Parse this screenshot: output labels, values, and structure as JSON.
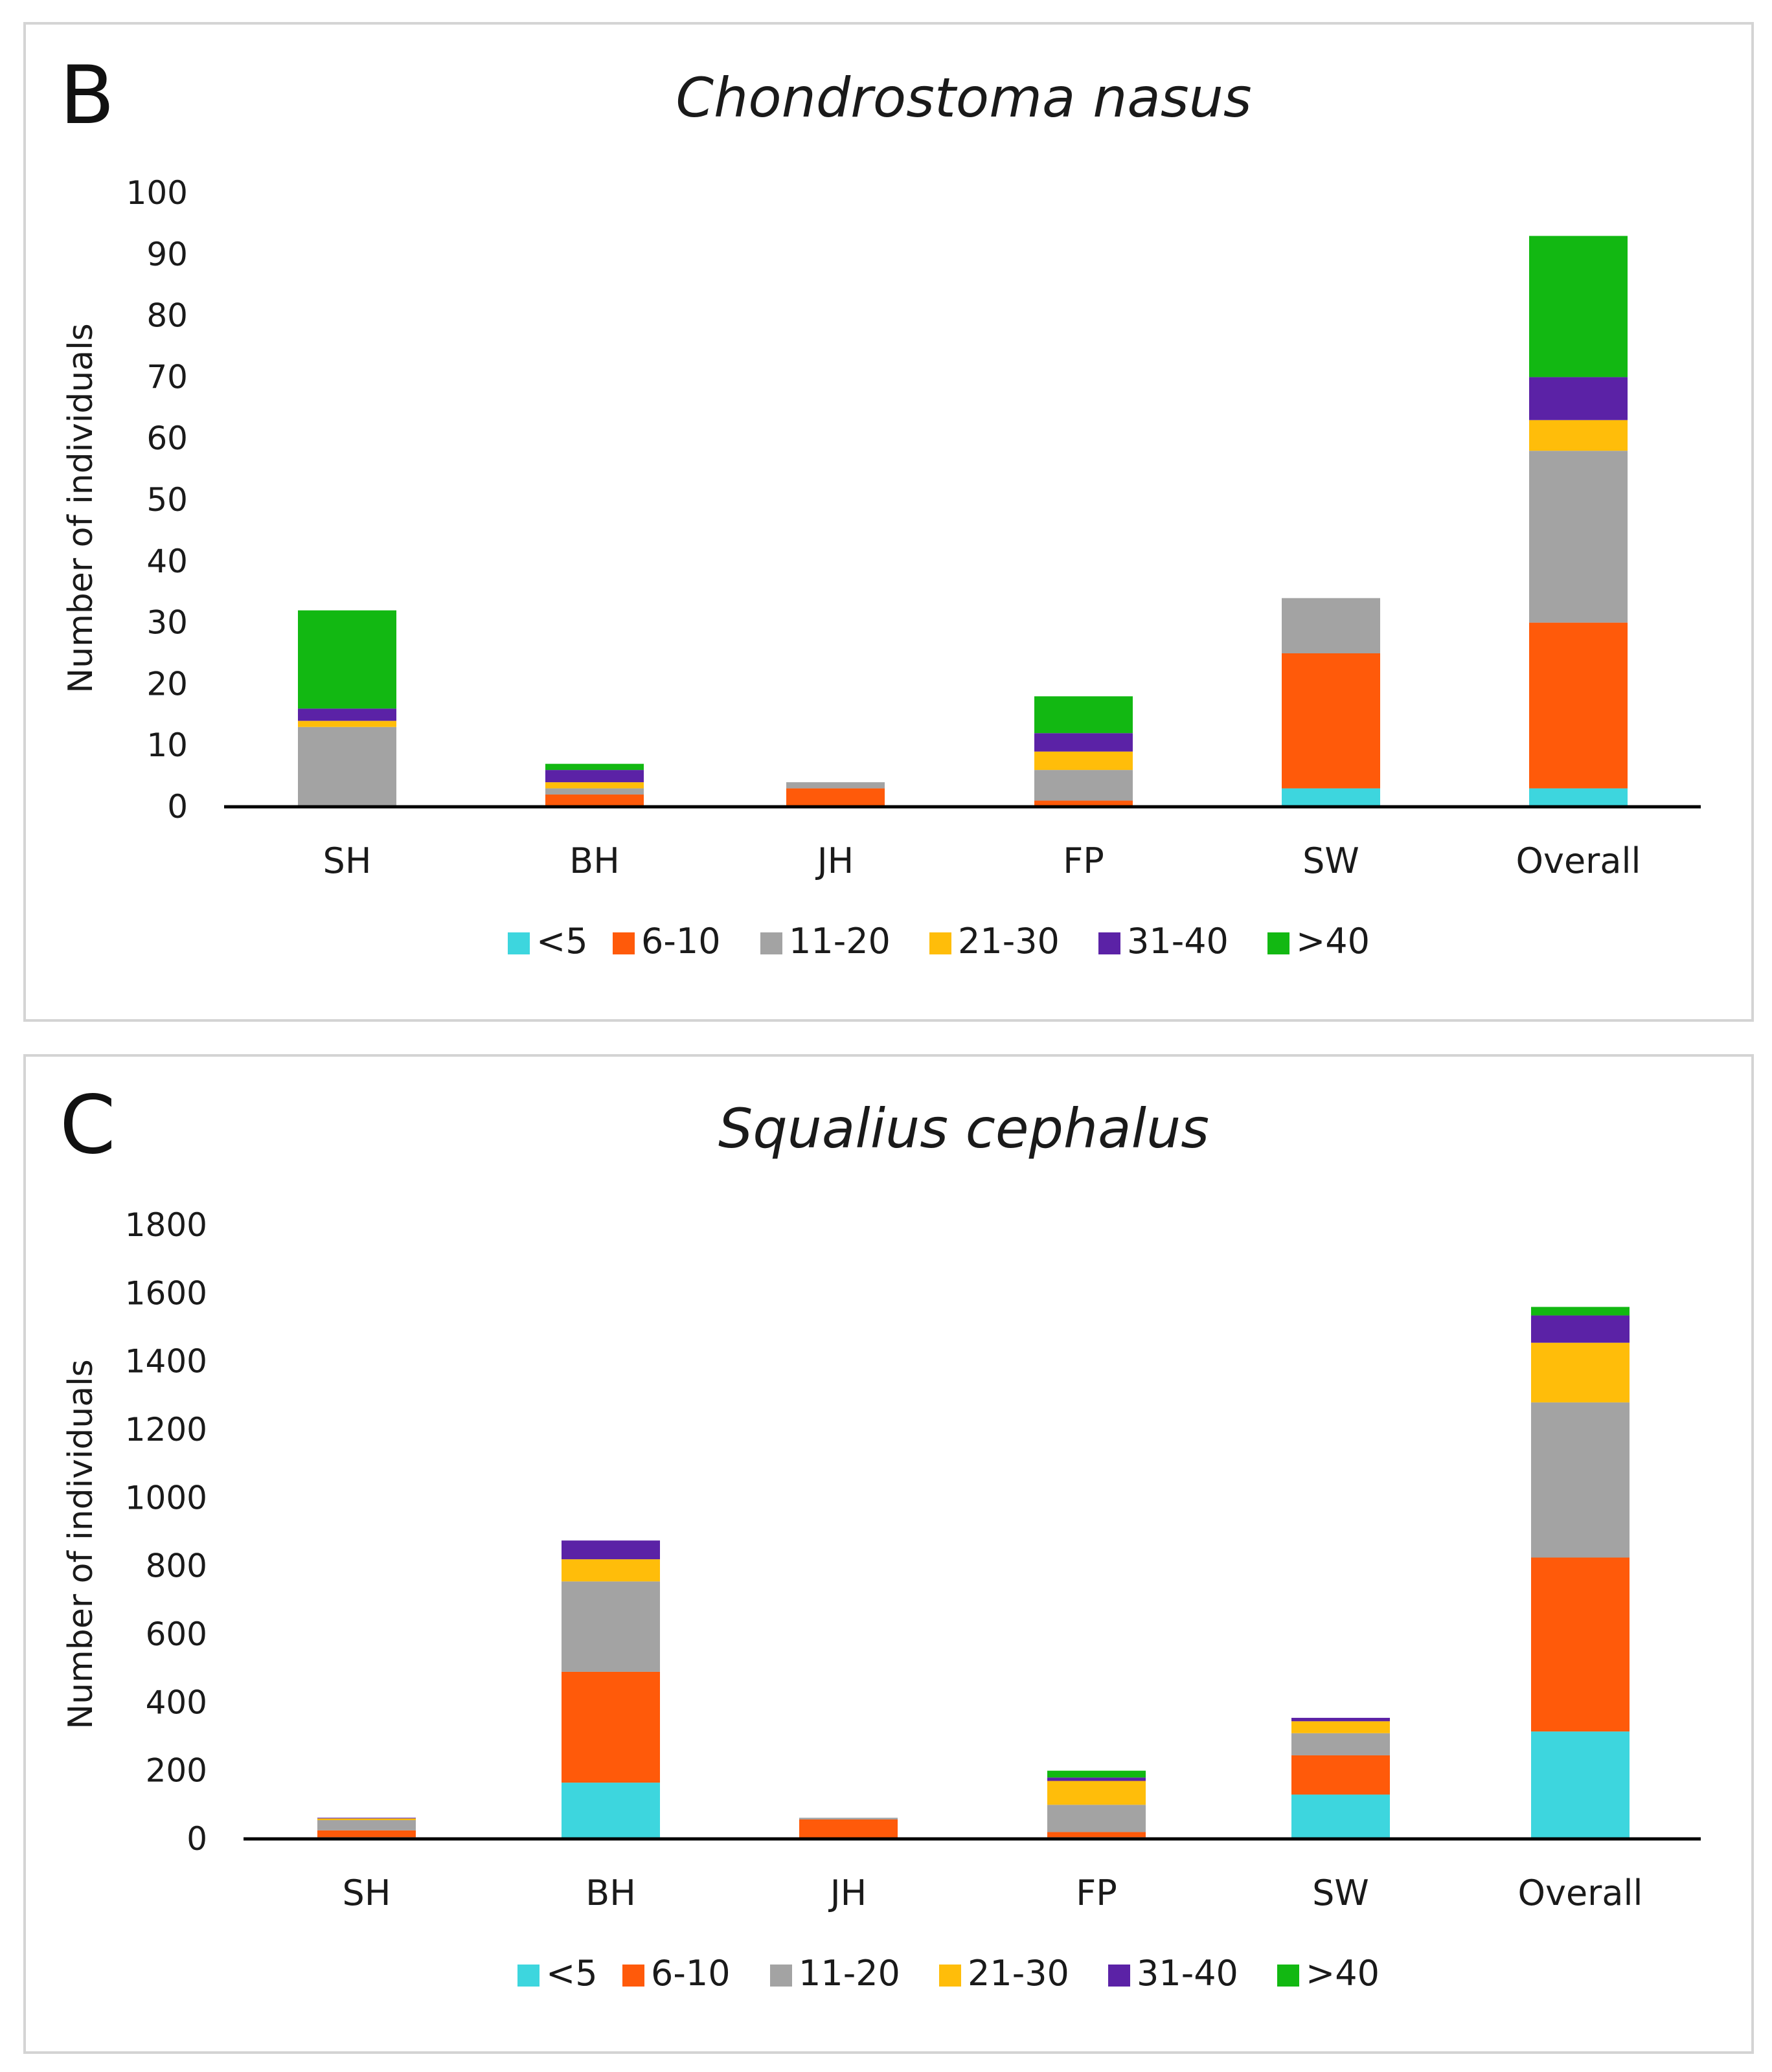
{
  "figure": {
    "series_names": [
      "<5",
      "6-10",
      "11-20",
      "21-30",
      "31-40",
      ">40"
    ],
    "series_colors": [
      "#3dd6de",
      "#ff5a0a",
      "#a3a3a3",
      "#ffbd0a",
      "#5b22a6",
      "#12b812"
    ]
  },
  "chart_data": [
    {
      "panel_letter": "B",
      "type": "bar",
      "stacked": true,
      "title": "Chondrostoma nasus",
      "xlabel": "",
      "ylabel": "Number of individuals",
      "ylim": [
        0,
        100
      ],
      "yticks": [
        0,
        10,
        20,
        30,
        40,
        50,
        60,
        70,
        80,
        90,
        100
      ],
      "categories": [
        "SH",
        "BH",
        "JH",
        "FP",
        "SW",
        "Overall"
      ],
      "legend_position": "bottom",
      "series": [
        {
          "name": "<5",
          "values": [
            0,
            0,
            0,
            0,
            3,
            3
          ]
        },
        {
          "name": "6-10",
          "values": [
            0,
            2,
            3,
            1,
            22,
            27
          ]
        },
        {
          "name": "11-20",
          "values": [
            13,
            1,
            1,
            5,
            9,
            28
          ]
        },
        {
          "name": "21-30",
          "values": [
            1,
            1,
            0,
            3,
            0,
            5
          ]
        },
        {
          "name": "31-40",
          "values": [
            2,
            2,
            0,
            3,
            0,
            7
          ]
        },
        {
          "name": ">40",
          "values": [
            16,
            1,
            0,
            6,
            0,
            23
          ]
        }
      ]
    },
    {
      "panel_letter": "C",
      "type": "bar",
      "stacked": true,
      "title": "Squalius cephalus",
      "xlabel": "",
      "ylabel": "Number of individuals",
      "ylim": [
        0,
        1800
      ],
      "yticks": [
        0,
        200,
        400,
        600,
        800,
        1000,
        1200,
        1400,
        1600,
        1800
      ],
      "categories": [
        "SH",
        "BH",
        "JH",
        "FP",
        "SW",
        "Overall"
      ],
      "legend_position": "bottom",
      "series": [
        {
          "name": "<5",
          "values": [
            5,
            165,
            2,
            5,
            130,
            315
          ]
        },
        {
          "name": "6-10",
          "values": [
            20,
            325,
            55,
            15,
            115,
            510
          ]
        },
        {
          "name": "11-20",
          "values": [
            30,
            265,
            5,
            80,
            65,
            455
          ]
        },
        {
          "name": "21-30",
          "values": [
            5,
            65,
            0,
            70,
            35,
            175
          ]
        },
        {
          "name": "31-40",
          "values": [
            2,
            55,
            0,
            10,
            10,
            80
          ]
        },
        {
          "name": ">40",
          "values": [
            0,
            0,
            0,
            20,
            0,
            25
          ]
        }
      ]
    }
  ]
}
